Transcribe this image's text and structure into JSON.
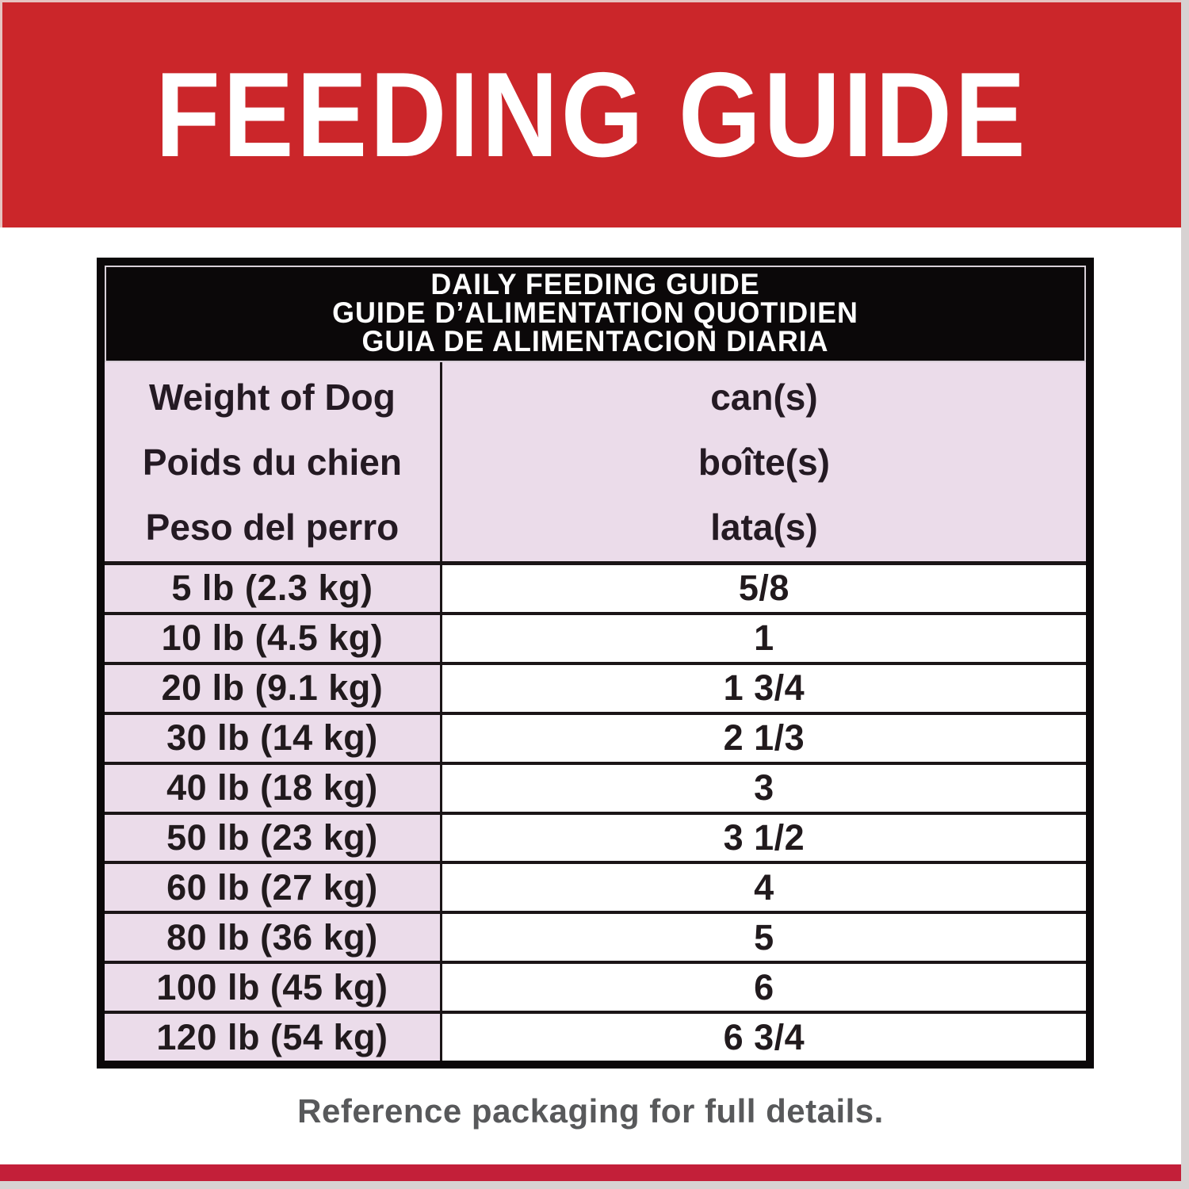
{
  "banner": {
    "title": "FEEDING GUIDE",
    "bg_color": "#cb262a",
    "text_color": "#ffffff"
  },
  "table": {
    "title_lines": [
      "DAILY FEEDING GUIDE",
      "GUIDE D’ALIMENTATION QUOTIDIEN",
      "GUIA DE ALIMENTACION DIARIA"
    ],
    "weight_header_lines": [
      "Weight of Dog",
      "Poids du chien",
      "Peso del perro"
    ],
    "cans_header_lines": [
      "can(s)",
      "boîte(s)",
      "lata(s)"
    ],
    "rows": [
      {
        "weight": "5 lb (2.3 kg)",
        "cans": "5/8"
      },
      {
        "weight": "10 lb (4.5 kg)",
        "cans": "1"
      },
      {
        "weight": "20 lb (9.1 kg)",
        "cans": "1 3/4"
      },
      {
        "weight": "30 lb (14 kg)",
        "cans": "2 1/3"
      },
      {
        "weight": "40 lb (18 kg)",
        "cans": "3"
      },
      {
        "weight": "50 lb (23 kg)",
        "cans": "3 1/2"
      },
      {
        "weight": "60 lb (27 kg)",
        "cans": "4"
      },
      {
        "weight": "80 lb (36 kg)",
        "cans": "5"
      },
      {
        "weight": "100 lb (45 kg)",
        "cans": "6"
      },
      {
        "weight": "120 lb (54 kg)",
        "cans": "6 3/4"
      }
    ],
    "colors": {
      "header_bg": "#0b0809",
      "pink_cell": "#ebdcea",
      "grid_line": "#1b1517"
    }
  },
  "footer": {
    "note": "Reference packaging for full details.",
    "text_color": "#58595b"
  },
  "frame": {
    "bottom_red_color": "#c31f39",
    "edge_color": "#d7d2d2"
  }
}
